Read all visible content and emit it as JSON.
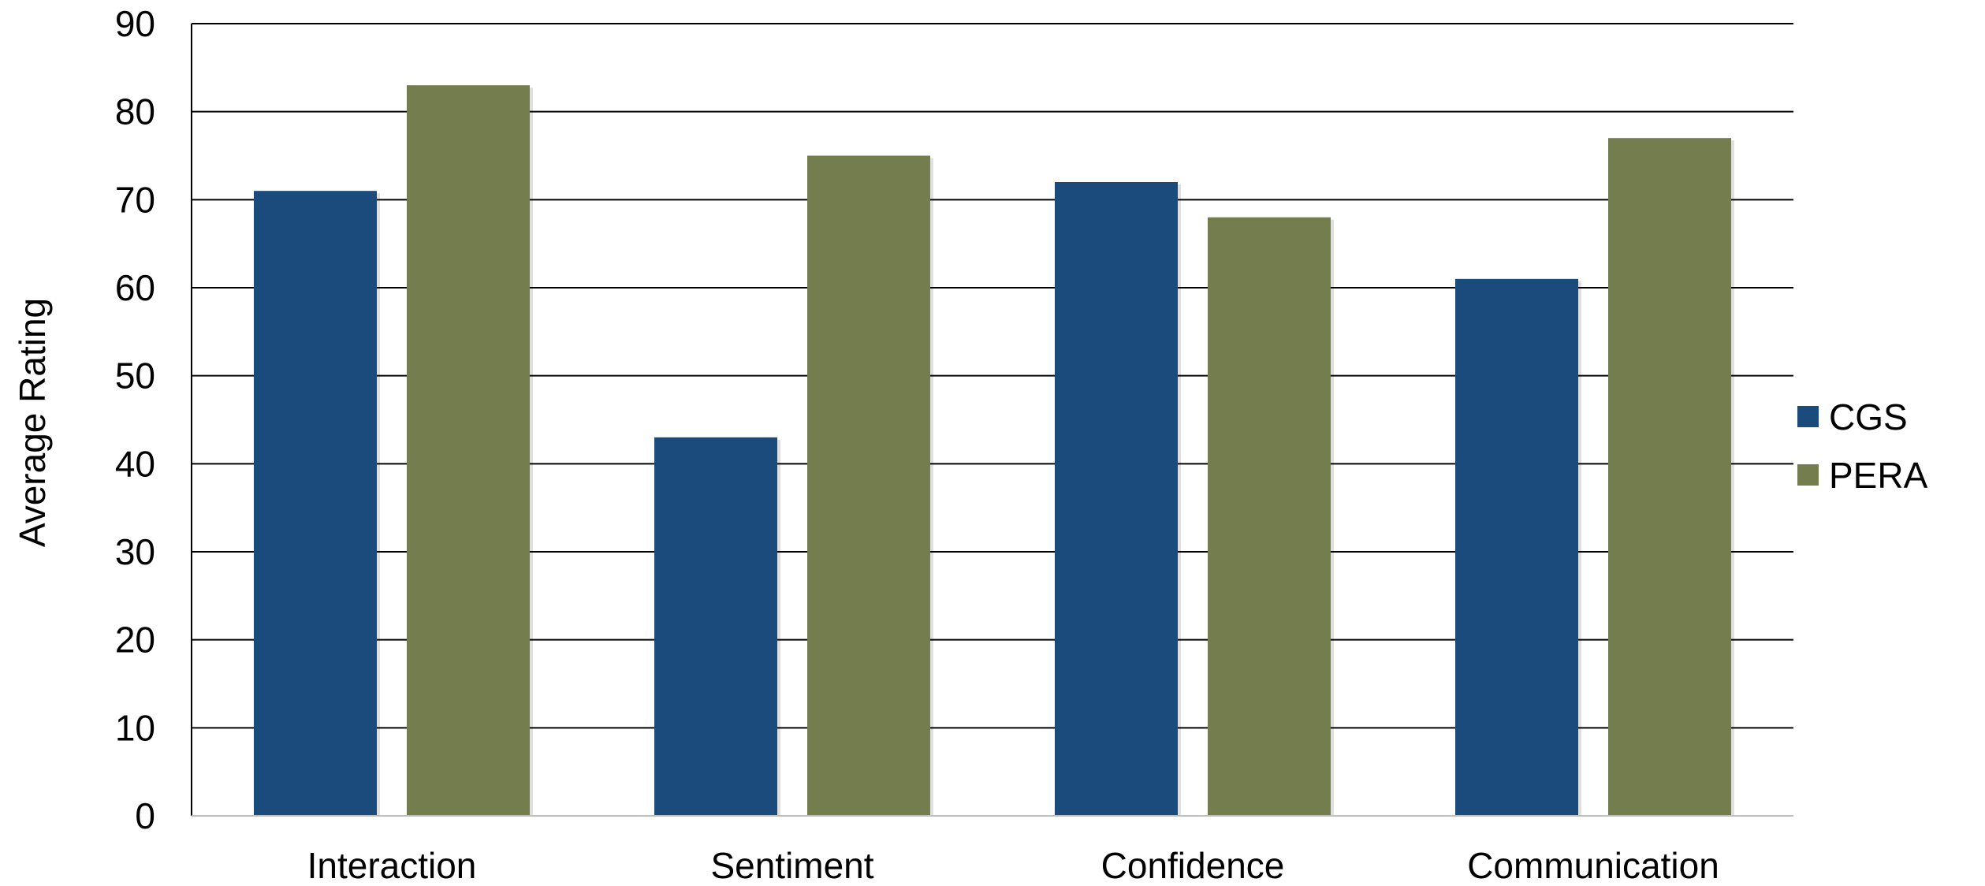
{
  "chart_data": {
    "type": "bar",
    "title": "",
    "xlabel": "",
    "ylabel": "Average Rating",
    "ylim": [
      0,
      90
    ],
    "ytick_step": 10,
    "grid": true,
    "legend_position": "right",
    "categories": [
      "Interaction",
      "Sentiment",
      "Confidence",
      "Communication"
    ],
    "series": [
      {
        "name": "CGS",
        "color": "#1a4b7c",
        "values": [
          71,
          43,
          72,
          61
        ]
      },
      {
        "name": "PERA",
        "color": "#747d4e",
        "values": [
          83,
          75,
          68,
          77
        ]
      }
    ]
  }
}
